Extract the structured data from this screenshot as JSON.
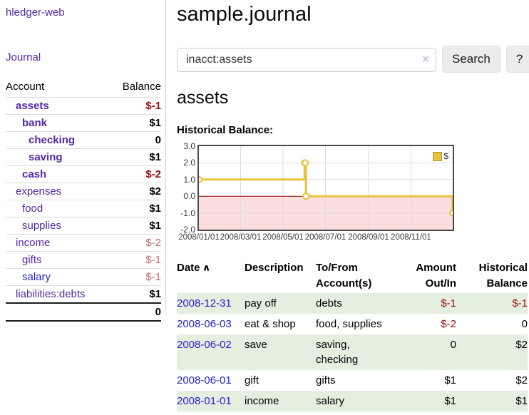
{
  "app": {
    "title": "hledger-web"
  },
  "sidebar": {
    "nav_journal": "Journal",
    "accounts_table": {
      "headers": {
        "account": "Account",
        "balance": "Balance"
      },
      "rows": [
        {
          "account": "assets",
          "balance": "$-1",
          "depth": 1,
          "strong": true,
          "balance_style": "negative-strong"
        },
        {
          "account": "bank",
          "balance": "$1",
          "depth": 2,
          "strong": true,
          "balance_style": "normal"
        },
        {
          "account": "checking",
          "balance": "0",
          "depth": 3,
          "strong": true,
          "balance_style": "normal"
        },
        {
          "account": "saving",
          "balance": "$1",
          "depth": 3,
          "strong": true,
          "balance_style": "normal"
        },
        {
          "account": "cash",
          "balance": "$-2",
          "depth": 2,
          "strong": true,
          "balance_style": "negative-strong"
        },
        {
          "account": "expenses",
          "balance": "$2",
          "depth": 1,
          "strong": false,
          "balance_style": "normal"
        },
        {
          "account": "food",
          "balance": "$1",
          "depth": 2,
          "strong": false,
          "balance_style": "normal"
        },
        {
          "account": "supplies",
          "balance": "$1",
          "depth": 2,
          "strong": false,
          "balance_style": "normal"
        },
        {
          "account": "income",
          "balance": "$-2",
          "depth": 1,
          "strong": false,
          "balance_style": "negative-soft"
        },
        {
          "account": "gifts",
          "balance": "$-1",
          "depth": 2,
          "strong": false,
          "balance_style": "negative-soft"
        },
        {
          "account": "salary",
          "balance": "$-1",
          "depth": 2,
          "strong": false,
          "balance_style": "negative-soft",
          "link_style": "blue"
        },
        {
          "account": "liabilities:debts",
          "balance": "$1",
          "depth": 1,
          "strong": false,
          "balance_style": "normal"
        }
      ],
      "total": "0"
    }
  },
  "header": {
    "title": "sample.journal"
  },
  "search": {
    "value": "inacct:assets",
    "clear_icon": "×",
    "button_label": "Search",
    "help_label": "?"
  },
  "account_page": {
    "heading": "assets",
    "chart_label": "Historical Balance:"
  },
  "chart_data": {
    "type": "line",
    "step": true,
    "title": "Historical Balance:",
    "series": [
      {
        "name": "$",
        "points": [
          [
            "2008-01-01",
            1
          ],
          [
            "2008-06-01",
            2
          ],
          [
            "2008-06-02",
            2
          ],
          [
            "2008-06-03",
            0
          ],
          [
            "2008-12-31",
            -1
          ]
        ]
      }
    ],
    "x_range": [
      "2008-01-01",
      "2008-12-31"
    ],
    "x_ticks": [
      "2008/01/01",
      "2008/03/01",
      "2008/05/01",
      "2008/07/01",
      "2008/09/01",
      "2008/11/01"
    ],
    "y_ticks": [
      "3.0",
      "2.0",
      "1.0",
      "0.0",
      "-1.0",
      "-2.0"
    ],
    "ylim": [
      -2,
      3
    ],
    "grid": true,
    "legend": {
      "label": "$",
      "position": "top-right"
    },
    "line_color": "#e8c340",
    "negative_region_color": "#fbdfdf",
    "zero_line_color": "#8b0000"
  },
  "register_table": {
    "headers": {
      "date": "Date",
      "sort_indicator": "∧",
      "description": "Description",
      "accounts_line1": "To/From",
      "accounts_line2": "Account(s)",
      "amount_line1": "Amount",
      "amount_line2": "Out/In",
      "balance_line1": "Historical",
      "balance_line2": "Balance"
    },
    "rows": [
      {
        "date": "2008-12-31",
        "description": "pay off",
        "accounts": "debts",
        "amount": "$-1",
        "balance": "$-1",
        "amount_negative": true,
        "balance_negative": true,
        "shaded": true
      },
      {
        "date": "2008-06-03",
        "description": "eat & shop",
        "accounts": "food, supplies",
        "amount": "$-2",
        "balance": "0",
        "amount_negative": true,
        "balance_negative": false,
        "shaded": false
      },
      {
        "date": "2008-06-02",
        "description": "save",
        "accounts": "saving,\nchecking",
        "amount": "0",
        "balance": "$2",
        "amount_negative": false,
        "balance_negative": false,
        "shaded": true
      },
      {
        "date": "2008-06-01",
        "description": "gift",
        "accounts": "gifts",
        "amount": "$1",
        "balance": "$2",
        "amount_negative": false,
        "balance_negative": false,
        "shaded": false
      },
      {
        "date": "2008-01-01",
        "description": "income",
        "accounts": "salary",
        "amount": "$1",
        "balance": "$1",
        "amount_negative": false,
        "balance_negative": false,
        "shaded": true
      }
    ]
  },
  "colors": {
    "link_purple": "#5229a3",
    "link_blue": "#2525cc",
    "negative_strong": "#9b0b0b",
    "negative_soft": "#c0696c",
    "row_shade_green": "#e4efe0",
    "chart_gold": "#e8c340",
    "chart_negative_pink": "#fbdfdf",
    "chart_zero_line": "#8b0000"
  }
}
